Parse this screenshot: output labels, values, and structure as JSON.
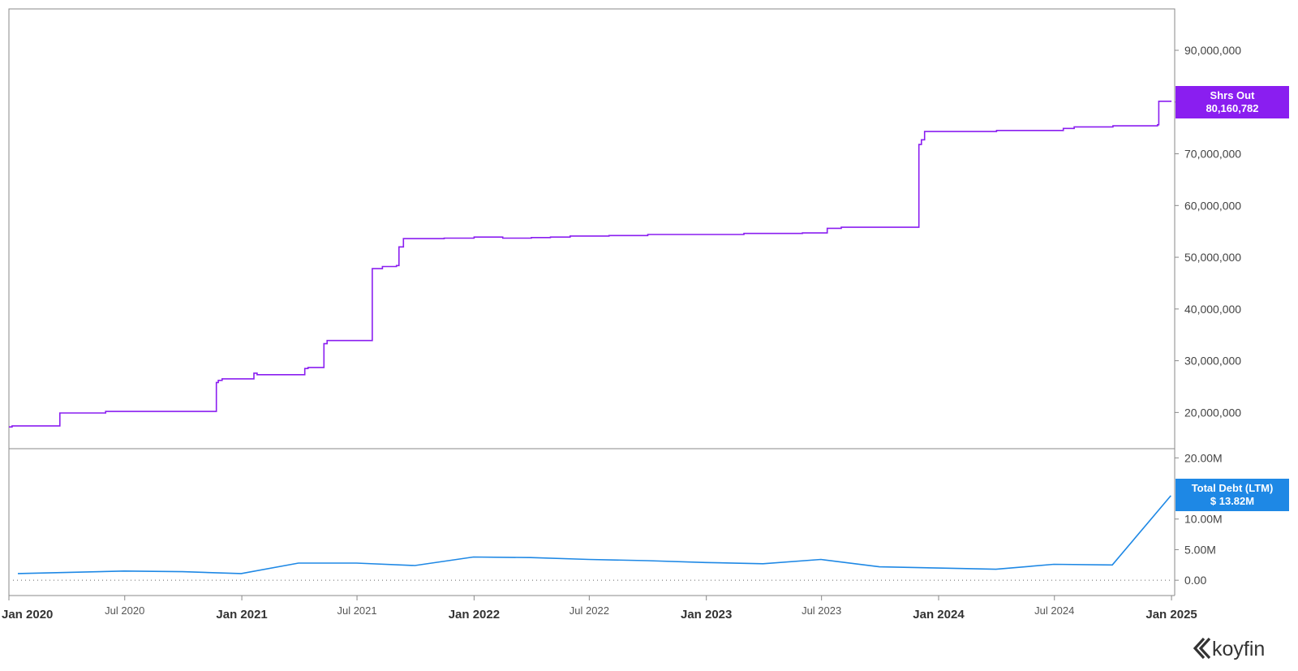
{
  "chart_data": [
    {
      "type": "line",
      "step": true,
      "series": [
        {
          "name": "Shrs Out",
          "color": "#8a1ef0",
          "x": [
            "2020-01-01",
            "2020-01-06",
            "2020-03-20",
            "2020-03-21",
            "2020-06-01",
            "2020-11-20",
            "2020-11-22",
            "2020-11-25",
            "2020-12-01",
            "2021-01-20",
            "2021-01-25",
            "2021-04-10",
            "2021-04-15",
            "2021-05-10",
            "2021-05-15",
            "2021-07-25",
            "2021-08-10",
            "2021-09-01",
            "2021-09-05",
            "2021-09-12",
            "2021-11-15",
            "2022-01-01",
            "2022-02-15",
            "2022-04-01",
            "2022-05-01",
            "2022-06-01",
            "2022-08-01",
            "2022-10-01",
            "2022-12-01",
            "2023-03-01",
            "2023-05-01",
            "2023-06-01",
            "2023-07-10",
            "2023-08-01",
            "2023-09-01",
            "2023-12-01",
            "2023-12-05",
            "2023-12-10",
            "2024-02-01",
            "2024-04-01",
            "2024-06-01",
            "2024-07-05",
            "2024-07-15",
            "2024-08-01",
            "2024-10-01",
            "2024-12-10",
            "2024-12-12",
            "2025-01-01"
          ],
          "values": [
            17200000,
            17400000,
            17400000,
            19900000,
            20200000,
            20200000,
            25800000,
            26200000,
            26500000,
            27600000,
            27300000,
            28500000,
            28700000,
            33300000,
            33900000,
            47800000,
            48200000,
            48400000,
            52000000,
            53600000,
            53700000,
            53900000,
            53700000,
            53800000,
            53900000,
            54100000,
            54200000,
            54400000,
            54400000,
            54600000,
            54600000,
            54700000,
            55600000,
            55800000,
            55800000,
            71800000,
            72700000,
            74300000,
            74300000,
            74500000,
            74500000,
            74500000,
            74900000,
            75200000,
            75400000,
            75600000,
            80160782,
            80160782
          ]
        }
      ],
      "y_ticks": [
        "20,000,000",
        "30,000,000",
        "40,000,000",
        "50,000,000",
        "60,000,000",
        "70,000,000",
        "80,000,000",
        "90,000,000"
      ],
      "y_values": [
        20000000,
        30000000,
        40000000,
        50000000,
        60000000,
        70000000,
        80000000,
        90000000
      ],
      "ylim": [
        13000000,
        98000000
      ],
      "last_value_tag": {
        "label": "Shrs Out",
        "value": "80,160,782",
        "color": "#8a1ef0"
      }
    },
    {
      "type": "line",
      "series": [
        {
          "name": "Total Debt (LTM)",
          "color": "#1e88e5",
          "x": [
            "2020-01-15",
            "2020-06-30",
            "2020-09-30",
            "2020-12-31",
            "2021-03-31",
            "2021-06-30",
            "2021-09-30",
            "2021-12-31",
            "2022-03-31",
            "2022-06-30",
            "2022-09-30",
            "2022-12-31",
            "2023-03-31",
            "2023-06-30",
            "2023-09-30",
            "2023-12-31",
            "2024-03-31",
            "2024-06-30",
            "2024-09-30",
            "2024-12-31"
          ],
          "values": [
            1.1,
            1.5,
            1.4,
            1.1,
            2.8,
            2.8,
            2.4,
            3.8,
            3.7,
            3.4,
            3.2,
            2.9,
            2.7,
            3.4,
            2.2,
            2.0,
            1.8,
            2.6,
            2.5,
            13.82
          ]
        }
      ],
      "y_ticks": [
        "0.00",
        "5.00M",
        "10.00M",
        "20.00M"
      ],
      "y_values": [
        0,
        5,
        10,
        20
      ],
      "ylim": [
        -2.5,
        21.5
      ],
      "zero_line": true,
      "last_value_tag": {
        "label": "Total Debt (LTM)",
        "value": "$ 13.82M",
        "color": "#1e88e5"
      }
    }
  ],
  "x_axis": {
    "range": [
      "2020-01-01",
      "2025-01-06"
    ],
    "ticks": [
      {
        "date": "2020-01-01",
        "label": "Jan 2020",
        "major": true
      },
      {
        "date": "2020-07-01",
        "label": "Jul 2020",
        "major": false
      },
      {
        "date": "2021-01-01",
        "label": "Jan 2021",
        "major": true
      },
      {
        "date": "2021-07-01",
        "label": "Jul 2021",
        "major": false
      },
      {
        "date": "2022-01-01",
        "label": "Jan 2022",
        "major": true
      },
      {
        "date": "2022-07-01",
        "label": "Jul 2022",
        "major": false
      },
      {
        "date": "2023-01-01",
        "label": "Jan 2023",
        "major": true
      },
      {
        "date": "2023-07-01",
        "label": "Jul 2023",
        "major": false
      },
      {
        "date": "2024-01-01",
        "label": "Jan 2024",
        "major": true
      },
      {
        "date": "2024-07-01",
        "label": "Jul 2024",
        "major": false
      },
      {
        "date": "2025-01-01",
        "label": "Jan 2025",
        "major": true
      }
    ]
  },
  "branding": {
    "logo_text": "koyfin",
    "logo_icon": "koyfin-chevron-icon"
  }
}
